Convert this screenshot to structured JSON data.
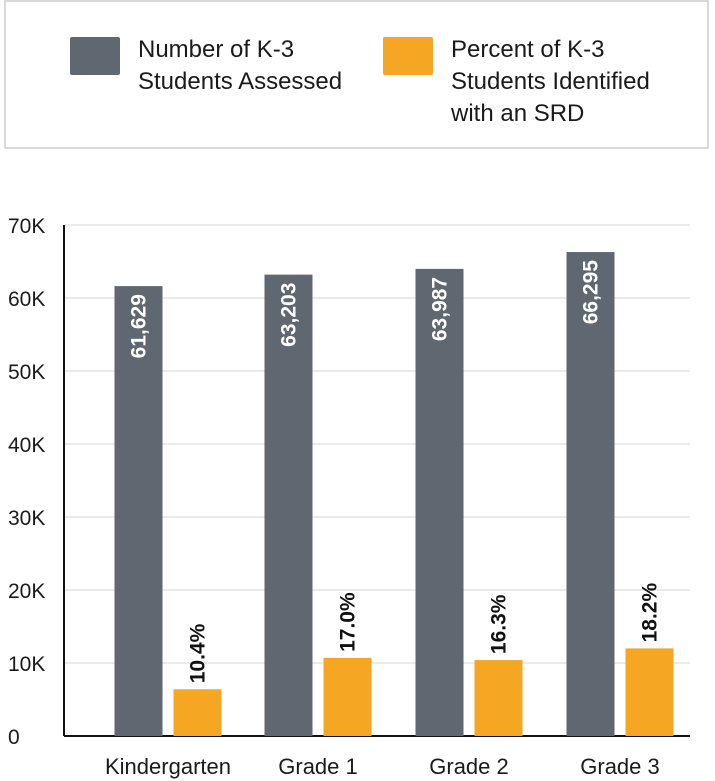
{
  "legend": {
    "items": [
      {
        "lines": [
          "Number of K-3",
          "Students Assessed"
        ],
        "color": "#5f6770"
      },
      {
        "lines": [
          "Percent of K-3",
          "Students Identified",
          "with an SRD"
        ],
        "color": "#f5a623"
      }
    ]
  },
  "chart_data": {
    "type": "bar",
    "categories": [
      "Kindergarten",
      "Grade 1",
      "Grade 2",
      "Grade 3"
    ],
    "series": [
      {
        "name": "Number of K-3 Students Assessed",
        "values": [
          61629,
          63203,
          63987,
          66295
        ],
        "labels": [
          "61,629",
          "63,203",
          "63,987",
          "66,295"
        ],
        "color": "#5f6770"
      },
      {
        "name": "Percent of K-3 Students Identified with an SRD",
        "values": [
          6400,
          10700,
          10400,
          12000
        ],
        "labels": [
          "10.4%",
          "17.0%",
          "16.3%",
          "18.2%"
        ],
        "color": "#f5a623"
      }
    ],
    "ylim": [
      0,
      70000
    ],
    "yticks": [
      0,
      10000,
      20000,
      30000,
      40000,
      50000,
      60000,
      70000
    ],
    "ytick_labels": [
      "0",
      "10K",
      "20K",
      "30K",
      "40K",
      "50K",
      "60K",
      "70K"
    ],
    "grid": true,
    "legend_position": "top"
  }
}
